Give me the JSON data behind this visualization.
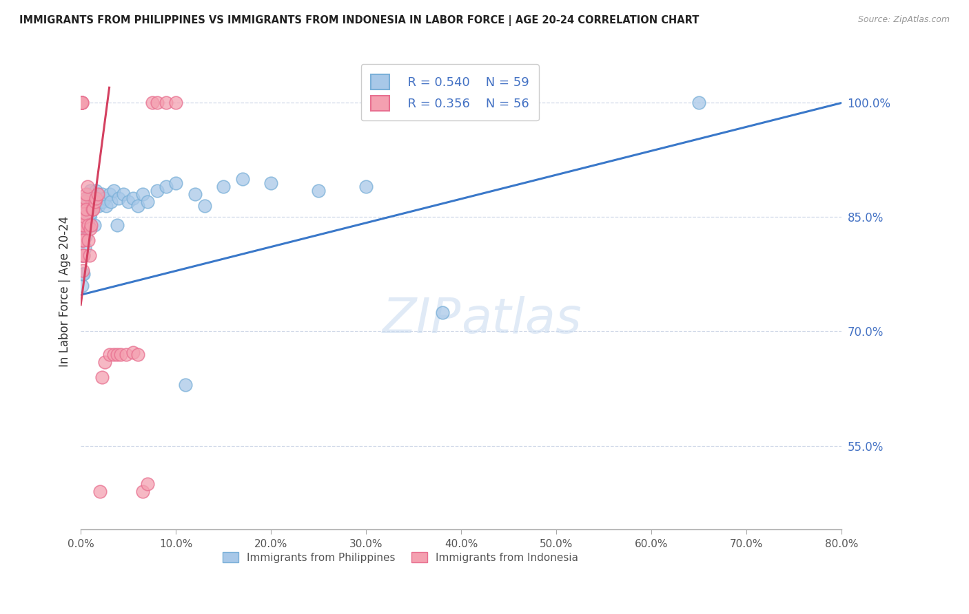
{
  "title": "IMMIGRANTS FROM PHILIPPINES VS IMMIGRANTS FROM INDONESIA IN LABOR FORCE | AGE 20-24 CORRELATION CHART",
  "source": "Source: ZipAtlas.com",
  "ylabel": "In Labor Force | Age 20-24",
  "right_yticks": [
    1.0,
    0.85,
    0.7,
    0.55
  ],
  "right_ytick_labels": [
    "100.0%",
    "85.0%",
    "70.0%",
    "55.0%"
  ],
  "blue_color": "#a8c8e8",
  "blue_edge_color": "#7ab0d8",
  "pink_color": "#f4a0b0",
  "pink_edge_color": "#e87090",
  "blue_line_color": "#3a78c9",
  "pink_line_color": "#d44060",
  "legend_blue_r": "R = 0.540",
  "legend_blue_n": "N = 59",
  "legend_pink_r": "R = 0.356",
  "legend_pink_n": "N = 56",
  "watermark_zip": "ZIP",
  "watermark_atlas": "atlas",
  "xmin": 0.0,
  "xmax": 0.8,
  "ymin": 0.44,
  "ymax": 1.065,
  "blue_trend_x0": 0.0,
  "blue_trend_y0": 0.748,
  "blue_trend_x1": 0.8,
  "blue_trend_y1": 1.0,
  "pink_trend_x0": 0.0,
  "pink_trend_y0": 0.735,
  "pink_trend_x1": 0.03,
  "pink_trend_y1": 1.02,
  "n_blue_xticks": 9,
  "blue_scatter_x": [
    0.001,
    0.001,
    0.002,
    0.002,
    0.003,
    0.003,
    0.003,
    0.004,
    0.004,
    0.005,
    0.005,
    0.006,
    0.006,
    0.007,
    0.007,
    0.008,
    0.008,
    0.009,
    0.009,
    0.01,
    0.01,
    0.011,
    0.012,
    0.013,
    0.014,
    0.015,
    0.016,
    0.017,
    0.018,
    0.019,
    0.02,
    0.022,
    0.023,
    0.025,
    0.027,
    0.03,
    0.032,
    0.035,
    0.038,
    0.04,
    0.045,
    0.05,
    0.055,
    0.06,
    0.065,
    0.07,
    0.08,
    0.09,
    0.1,
    0.11,
    0.12,
    0.13,
    0.15,
    0.17,
    0.2,
    0.25,
    0.3,
    0.38,
    0.65
  ],
  "blue_scatter_y": [
    0.8,
    0.76,
    0.82,
    0.775,
    0.83,
    0.8,
    0.775,
    0.84,
    0.81,
    0.86,
    0.825,
    0.87,
    0.835,
    0.875,
    0.84,
    0.875,
    0.845,
    0.88,
    0.85,
    0.885,
    0.855,
    0.875,
    0.865,
    0.875,
    0.84,
    0.87,
    0.885,
    0.87,
    0.875,
    0.865,
    0.87,
    0.88,
    0.87,
    0.875,
    0.865,
    0.88,
    0.87,
    0.885,
    0.84,
    0.875,
    0.88,
    0.87,
    0.875,
    0.865,
    0.88,
    0.87,
    0.885,
    0.89,
    0.895,
    0.63,
    0.88,
    0.865,
    0.89,
    0.9,
    0.895,
    0.885,
    0.89,
    0.725,
    1.0
  ],
  "pink_scatter_x": [
    0.0001,
    0.0002,
    0.0003,
    0.0004,
    0.0005,
    0.0006,
    0.0007,
    0.0008,
    0.0009,
    0.001,
    0.001,
    0.001,
    0.001,
    0.001,
    0.002,
    0.002,
    0.002,
    0.002,
    0.002,
    0.003,
    0.003,
    0.003,
    0.003,
    0.004,
    0.004,
    0.005,
    0.005,
    0.006,
    0.006,
    0.007,
    0.008,
    0.008,
    0.009,
    0.01,
    0.011,
    0.012,
    0.013,
    0.015,
    0.016,
    0.018,
    0.02,
    0.022,
    0.025,
    0.03,
    0.035,
    0.038,
    0.042,
    0.048,
    0.055,
    0.06,
    0.065,
    0.07,
    0.075,
    0.08,
    0.09,
    0.1
  ],
  "pink_scatter_y": [
    1.0,
    1.0,
    1.0,
    1.0,
    1.0,
    1.0,
    1.0,
    1.0,
    1.0,
    1.0,
    1.0,
    0.83,
    0.82,
    0.8,
    0.84,
    0.82,
    0.8,
    0.78,
    0.84,
    0.86,
    0.84,
    0.82,
    0.8,
    0.87,
    0.85,
    0.875,
    0.855,
    0.88,
    0.86,
    0.89,
    0.84,
    0.82,
    0.8,
    0.835,
    0.84,
    0.86,
    0.86,
    0.87,
    0.875,
    0.88,
    0.49,
    0.64,
    0.66,
    0.67,
    0.67,
    0.67,
    0.67,
    0.67,
    0.672,
    0.67,
    0.49,
    0.5,
    1.0,
    1.0,
    1.0,
    1.0
  ]
}
